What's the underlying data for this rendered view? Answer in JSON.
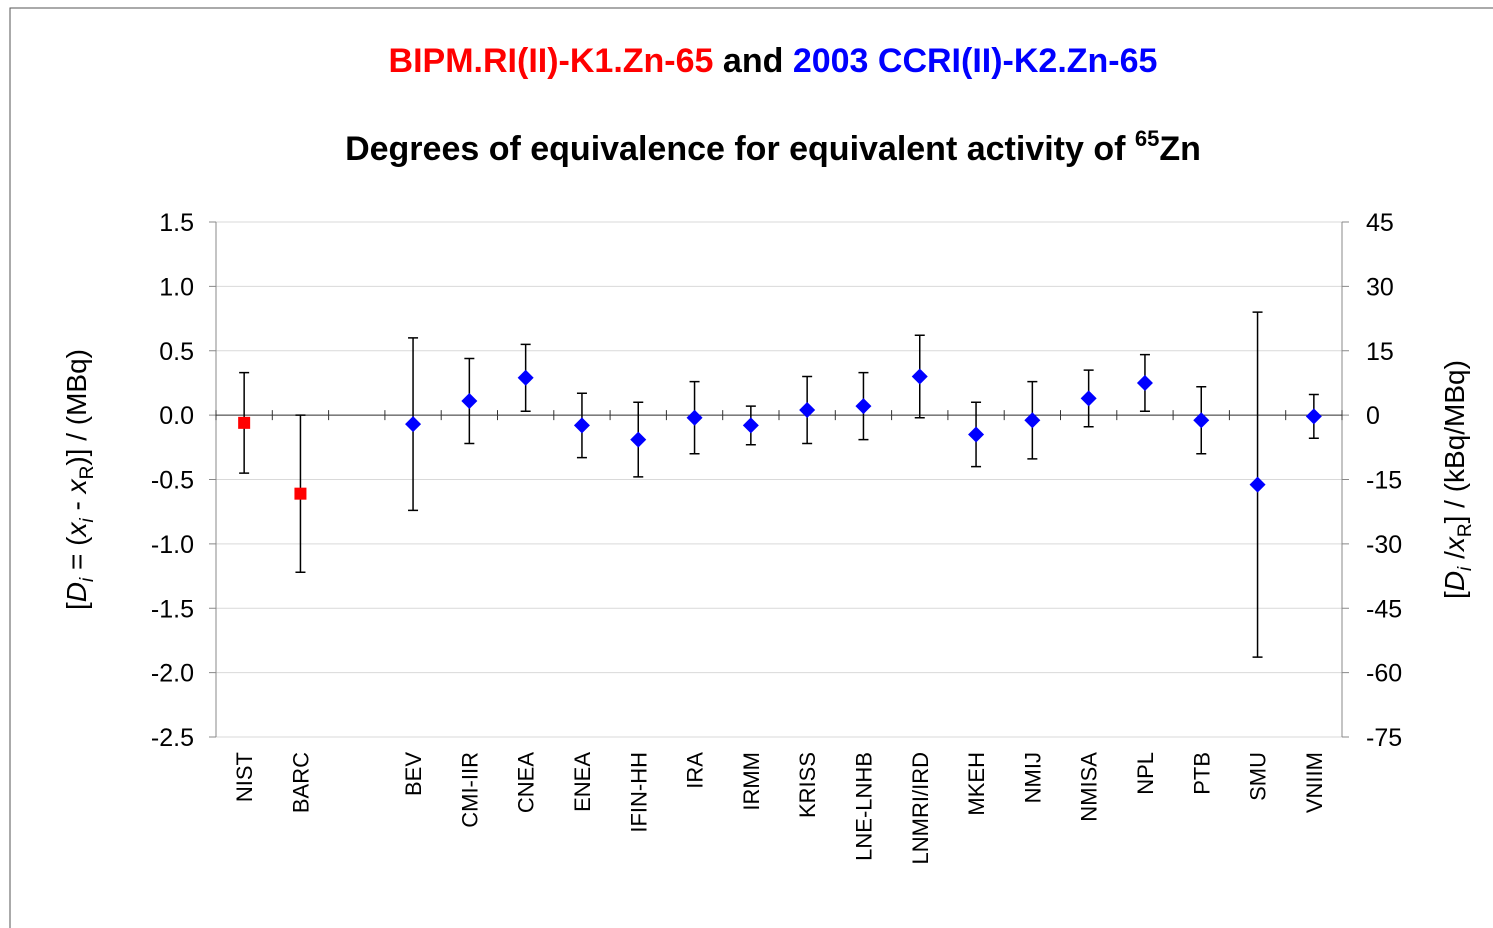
{
  "chart_data": {
    "type": "errorbar",
    "title_join": "and",
    "subtitle": {
      "text": "Degrees of equivalence for equivalent activity of ",
      "sup": "65",
      "end": "Zn"
    },
    "y_label_parts": [
      [
        "[",
        "n"
      ],
      [
        "D",
        "i"
      ],
      [
        "i",
        "sub-i"
      ],
      [
        " = (",
        "n"
      ],
      [
        "x",
        "i"
      ],
      [
        "i",
        "sub-i"
      ],
      [
        " - ",
        "n"
      ],
      [
        "x",
        "i"
      ],
      [
        "R",
        "sub"
      ],
      [
        ")] / (MBq)",
        "n"
      ]
    ],
    "y2_label_parts": [
      [
        "[",
        "n"
      ],
      [
        "D",
        "i"
      ],
      [
        "i",
        "sub-i"
      ],
      [
        " /",
        "n"
      ],
      [
        "x",
        "i"
      ],
      [
        "R",
        "sub"
      ],
      [
        "] / (kBq/MBq)",
        "n"
      ]
    ],
    "categories": [
      "NIST",
      "BARC",
      null,
      "BEV",
      "CMI-IIR",
      "CNEA",
      "ENEA",
      "IFIN-HH",
      "IRA",
      "IRMM",
      "KRISS",
      "LNE-LNHB",
      "LNMRI/IRD",
      "MKEH",
      "NMIJ",
      "NMISA",
      "NPL",
      "PTB",
      "SMU",
      "VNIIM"
    ],
    "series": [
      {
        "name": "BIPM.RI(II)-K1.Zn-65",
        "color": "#ff0000",
        "marker": "square",
        "values": [
          -0.06,
          -0.61,
          null,
          null,
          null,
          null,
          null,
          null,
          null,
          null,
          null,
          null,
          null,
          null,
          null,
          null,
          null,
          null,
          null,
          null
        ],
        "errors": [
          0.39,
          0.61,
          null,
          null,
          null,
          null,
          null,
          null,
          null,
          null,
          null,
          null,
          null,
          null,
          null,
          null,
          null,
          null,
          null,
          null
        ]
      },
      {
        "name": "2003 CCRI(II)-K2.Zn-65",
        "color": "#0000ff",
        "marker": "diamond",
        "values": [
          null,
          null,
          null,
          -0.07,
          0.11,
          0.29,
          -0.08,
          -0.19,
          -0.02,
          -0.08,
          0.04,
          0.07,
          0.3,
          -0.15,
          -0.04,
          0.13,
          0.25,
          -0.04,
          -0.54,
          -0.01
        ],
        "errors": [
          null,
          null,
          null,
          0.67,
          0.33,
          0.26,
          0.25,
          0.29,
          0.28,
          0.15,
          0.26,
          0.26,
          0.32,
          0.25,
          0.3,
          0.22,
          0.22,
          0.26,
          1.34,
          0.17
        ]
      }
    ],
    "ylim": [
      -2.5,
      1.5
    ],
    "yticks": [
      1.5,
      {
        "value": 1.0,
        "label": "1.0"
      },
      0.5,
      {
        "value": 0.0,
        "label": "0.0"
      },
      -0.5,
      {
        "value": -1.0,
        "label": "-1.0"
      },
      -1.5,
      {
        "value": -2.0,
        "label": "-2.0"
      },
      -2.5
    ],
    "y2lim": [
      -75,
      45
    ],
    "y2ticks": [
      45,
      30,
      15,
      0,
      -15,
      -30,
      -45,
      -60,
      -75
    ],
    "grid": true
  }
}
